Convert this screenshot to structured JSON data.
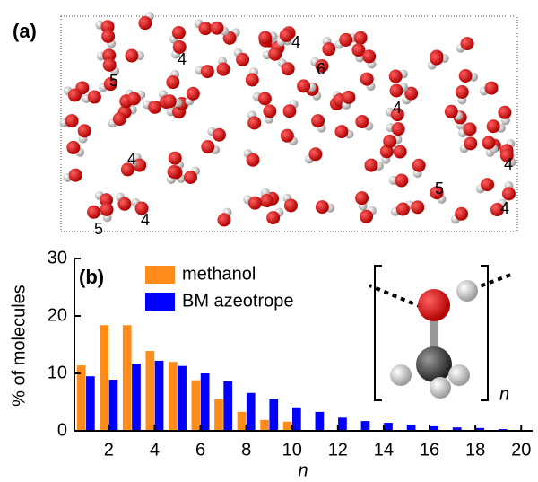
{
  "panel_a": {
    "label": "(a)",
    "cluster_labels": [
      "4",
      "4",
      "5",
      "6",
      "4",
      "4",
      "4",
      "5",
      "4",
      "4",
      "5"
    ]
  },
  "chart_data": {
    "type": "bar",
    "panel_label": "(b)",
    "x_label": "n",
    "y_label": "% of molecules",
    "inset_label": "n",
    "x": [
      1,
      2,
      3,
      4,
      5,
      6,
      7,
      8,
      9,
      10,
      11,
      12,
      13,
      14,
      15,
      16,
      17,
      18,
      19
    ],
    "series": [
      {
        "name": "methanol",
        "color": "#ff8c1a",
        "values": [
          11.4,
          18.4,
          18.4,
          13.9,
          12.0,
          8.8,
          5.5,
          3.3,
          1.9,
          1.6,
          null,
          null,
          null,
          null,
          null,
          null,
          null,
          null,
          null
        ]
      },
      {
        "name": "BM azeotrope",
        "color": "#0000ff",
        "values": [
          9.5,
          8.9,
          11.7,
          12.2,
          11.3,
          10.0,
          8.6,
          6.6,
          5.5,
          4.1,
          3.3,
          2.3,
          1.7,
          1.4,
          1.1,
          0.8,
          0.6,
          0.5,
          0.3
        ]
      }
    ],
    "xlim": [
      0.5,
      20.5
    ],
    "ylim": [
      0,
      30
    ],
    "xticks": [
      2,
      4,
      6,
      8,
      10,
      12,
      14,
      16,
      18,
      20
    ],
    "yticks": [
      0,
      10,
      20,
      30
    ],
    "legend": "upper-left"
  }
}
